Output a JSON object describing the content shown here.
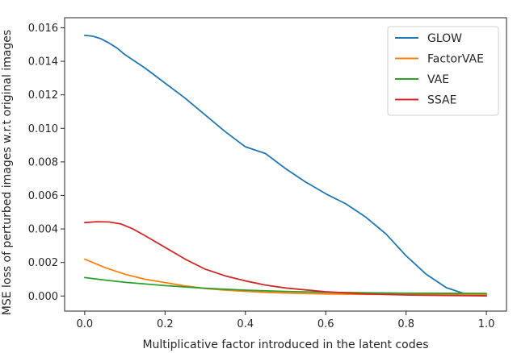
{
  "chart_data": {
    "type": "line",
    "title": "",
    "xlabel": "Multiplicative factor introduced in the latent codes",
    "ylabel": "MSE loss of perturbed images w.r.t original images",
    "xlim": [
      -0.05,
      1.05
    ],
    "ylim": [
      -0.0009,
      0.0166
    ],
    "xticks": [
      0.0,
      0.2,
      0.4,
      0.6,
      0.8,
      1.0
    ],
    "xtick_labels": [
      "0.0",
      "0.2",
      "0.4",
      "0.6",
      "0.8",
      "1.0"
    ],
    "yticks": [
      0.0,
      0.002,
      0.004,
      0.006,
      0.008,
      0.01,
      0.012,
      0.014,
      0.016
    ],
    "ytick_labels": [
      "0.000",
      "0.002",
      "0.004",
      "0.006",
      "0.008",
      "0.010",
      "0.012",
      "0.014",
      "0.016"
    ],
    "grid": false,
    "legend_position": "top-right",
    "series": [
      {
        "name": "GLOW",
        "color": "#1f77b4",
        "x": [
          0.0,
          0.02,
          0.04,
          0.06,
          0.08,
          0.1,
          0.15,
          0.2,
          0.25,
          0.3,
          0.35,
          0.4,
          0.45,
          0.5,
          0.55,
          0.6,
          0.65,
          0.7,
          0.75,
          0.8,
          0.85,
          0.9,
          0.95,
          1.0
        ],
        "values": [
          0.01555,
          0.0155,
          0.01535,
          0.0151,
          0.0148,
          0.0144,
          0.0136,
          0.0127,
          0.0118,
          0.0108,
          0.0098,
          0.0089,
          0.0085,
          0.0076,
          0.0068,
          0.0061,
          0.0055,
          0.0047,
          0.0037,
          0.0024,
          0.0013,
          0.0005,
          0.0001,
          0.0
        ]
      },
      {
        "name": "FactorVAE",
        "color": "#ff7f0e",
        "x": [
          0.0,
          0.05,
          0.1,
          0.15,
          0.2,
          0.25,
          0.3,
          0.35,
          0.4,
          0.45,
          0.5,
          0.6,
          0.7,
          0.8,
          0.9,
          1.0
        ],
        "values": [
          0.0022,
          0.0017,
          0.0013,
          0.001,
          0.0008,
          0.0006,
          0.00045,
          0.00035,
          0.00028,
          0.00022,
          0.00018,
          0.00012,
          0.0001,
          0.0001,
          0.0001,
          0.0001
        ]
      },
      {
        "name": "VAE",
        "color": "#2ca02c",
        "x": [
          0.0,
          0.05,
          0.1,
          0.2,
          0.3,
          0.4,
          0.5,
          0.6,
          0.7,
          0.8,
          0.9,
          1.0
        ],
        "values": [
          0.0011,
          0.00095,
          0.00082,
          0.00062,
          0.00046,
          0.00035,
          0.00027,
          0.00022,
          0.00019,
          0.00017,
          0.00016,
          0.00015
        ]
      },
      {
        "name": "SSAE",
        "color": "#d62728",
        "x": [
          0.0,
          0.03,
          0.06,
          0.09,
          0.12,
          0.15,
          0.2,
          0.25,
          0.3,
          0.35,
          0.4,
          0.45,
          0.5,
          0.6,
          0.7,
          0.8,
          0.9,
          1.0
        ],
        "values": [
          0.00438,
          0.00443,
          0.00442,
          0.0043,
          0.004,
          0.0036,
          0.0029,
          0.0022,
          0.0016,
          0.0012,
          0.0009,
          0.00065,
          0.00048,
          0.00025,
          0.00012,
          6e-05,
          3e-05,
          1e-05
        ]
      }
    ]
  }
}
